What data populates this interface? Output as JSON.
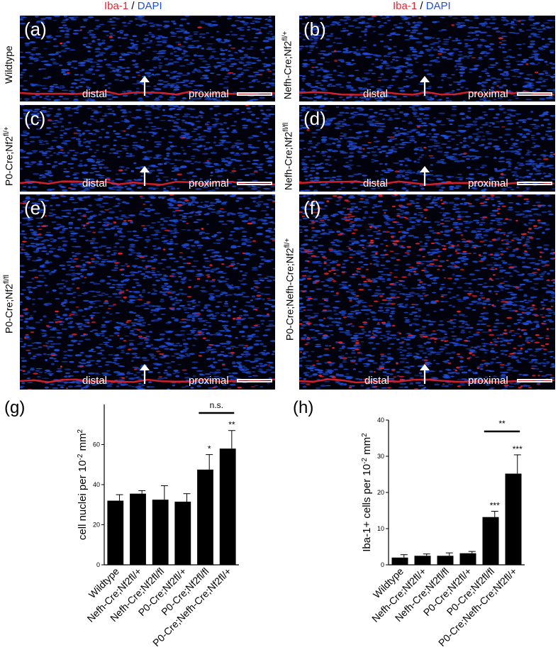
{
  "header": {
    "left": {
      "iba": "Iba-1",
      "sep": " / ",
      "dapi": "DAPI"
    },
    "right": {
      "iba": "Iba-1",
      "sep": " / ",
      "dapi": "DAPI"
    }
  },
  "panels": {
    "a": {
      "label": "(a)",
      "row_label": "Wildtype",
      "distal": "distal",
      "proximal": "proximal"
    },
    "b": {
      "label": "(b)",
      "row_label": "Nefh-Cre;Nf2",
      "row_sup": "fl/+",
      "distal": "distal",
      "proximal": "proximal"
    },
    "c": {
      "label": "(c)",
      "row_label": "P0-Cre;Nf2",
      "row_sup": "fl/+",
      "distal": "distal",
      "proximal": "proximal"
    },
    "d": {
      "label": "(d)",
      "row_label": "Nefh-Cre;Nf2",
      "row_sup": "fl/fl",
      "distal": "distal",
      "proximal": "proximal"
    },
    "e": {
      "label": "(e)",
      "row_label": "P0-Cre;Nf2",
      "row_sup": "fl/fl",
      "distal": "distal",
      "proximal": "proximal"
    },
    "f": {
      "label": "(f)",
      "row_label": "P0-Cre;Nefh-Cre;Nf2",
      "row_sup": "fl/+",
      "distal": "distal",
      "proximal": "proximal"
    }
  },
  "colors": {
    "iba1": "#e8222e",
    "dapi": "#1f4ed8",
    "background": "#02020c"
  },
  "chart_data": [
    {
      "panel_label": "(g)",
      "type": "bar",
      "categories": [
        "Wildtype",
        "Nefh-Cre;Nf2fl/+",
        "Nefh-Cre;Nf2fl/fl",
        "P0-Cre;Nf2fl/+",
        "P0-Cre;Nf2fl/fl",
        "P0-Cre;Nefh-Cre;Nf2fl/+"
      ],
      "values": [
        32,
        35.5,
        32.5,
        31.5,
        47.5,
        58
      ],
      "errors": [
        3,
        1.5,
        7,
        4,
        7.5,
        9
      ],
      "ylabel": "cell nuclei per 10",
      "ylabel_sup": "-2",
      "ylabel_unit": " mm",
      "ylabel_unit_sup": "2",
      "ylim": [
        0,
        80
      ],
      "yticks": [
        "0",
        "20",
        "40",
        "60"
      ],
      "significance": [
        "",
        "",
        "",
        "",
        "*",
        "**"
      ],
      "bracket": {
        "from": 4,
        "to": 5,
        "label": "n.s."
      }
    },
    {
      "panel_label": "(h)",
      "type": "bar",
      "categories": [
        "Wildtype",
        "Nefh-Cre;Nf2fl/+",
        "Nefh-Cre;Nf2fl/fl",
        "P0-Cre;Nf2fl/+",
        "P0-Cre;Nf2fl/fl",
        "P0-Cre;Nefh-Cre;Nf2fl/+"
      ],
      "values": [
        2,
        2.5,
        2.5,
        3.2,
        13.2,
        25.2
      ],
      "errors": [
        0.8,
        0.5,
        0.8,
        0.5,
        1.6,
        5.2
      ],
      "ylabel": "Iba-1+ cells per 10",
      "ylabel_sup": "-2",
      "ylabel_unit": " mm",
      "ylabel_unit_sup": "2",
      "ylim": [
        0,
        40
      ],
      "yticks": [
        "0",
        "10",
        "20",
        "30",
        "40"
      ],
      "significance": [
        "",
        "",
        "",
        "",
        "***",
        "***"
      ],
      "bracket": {
        "from": 4,
        "to": 5,
        "label": "**"
      }
    }
  ]
}
